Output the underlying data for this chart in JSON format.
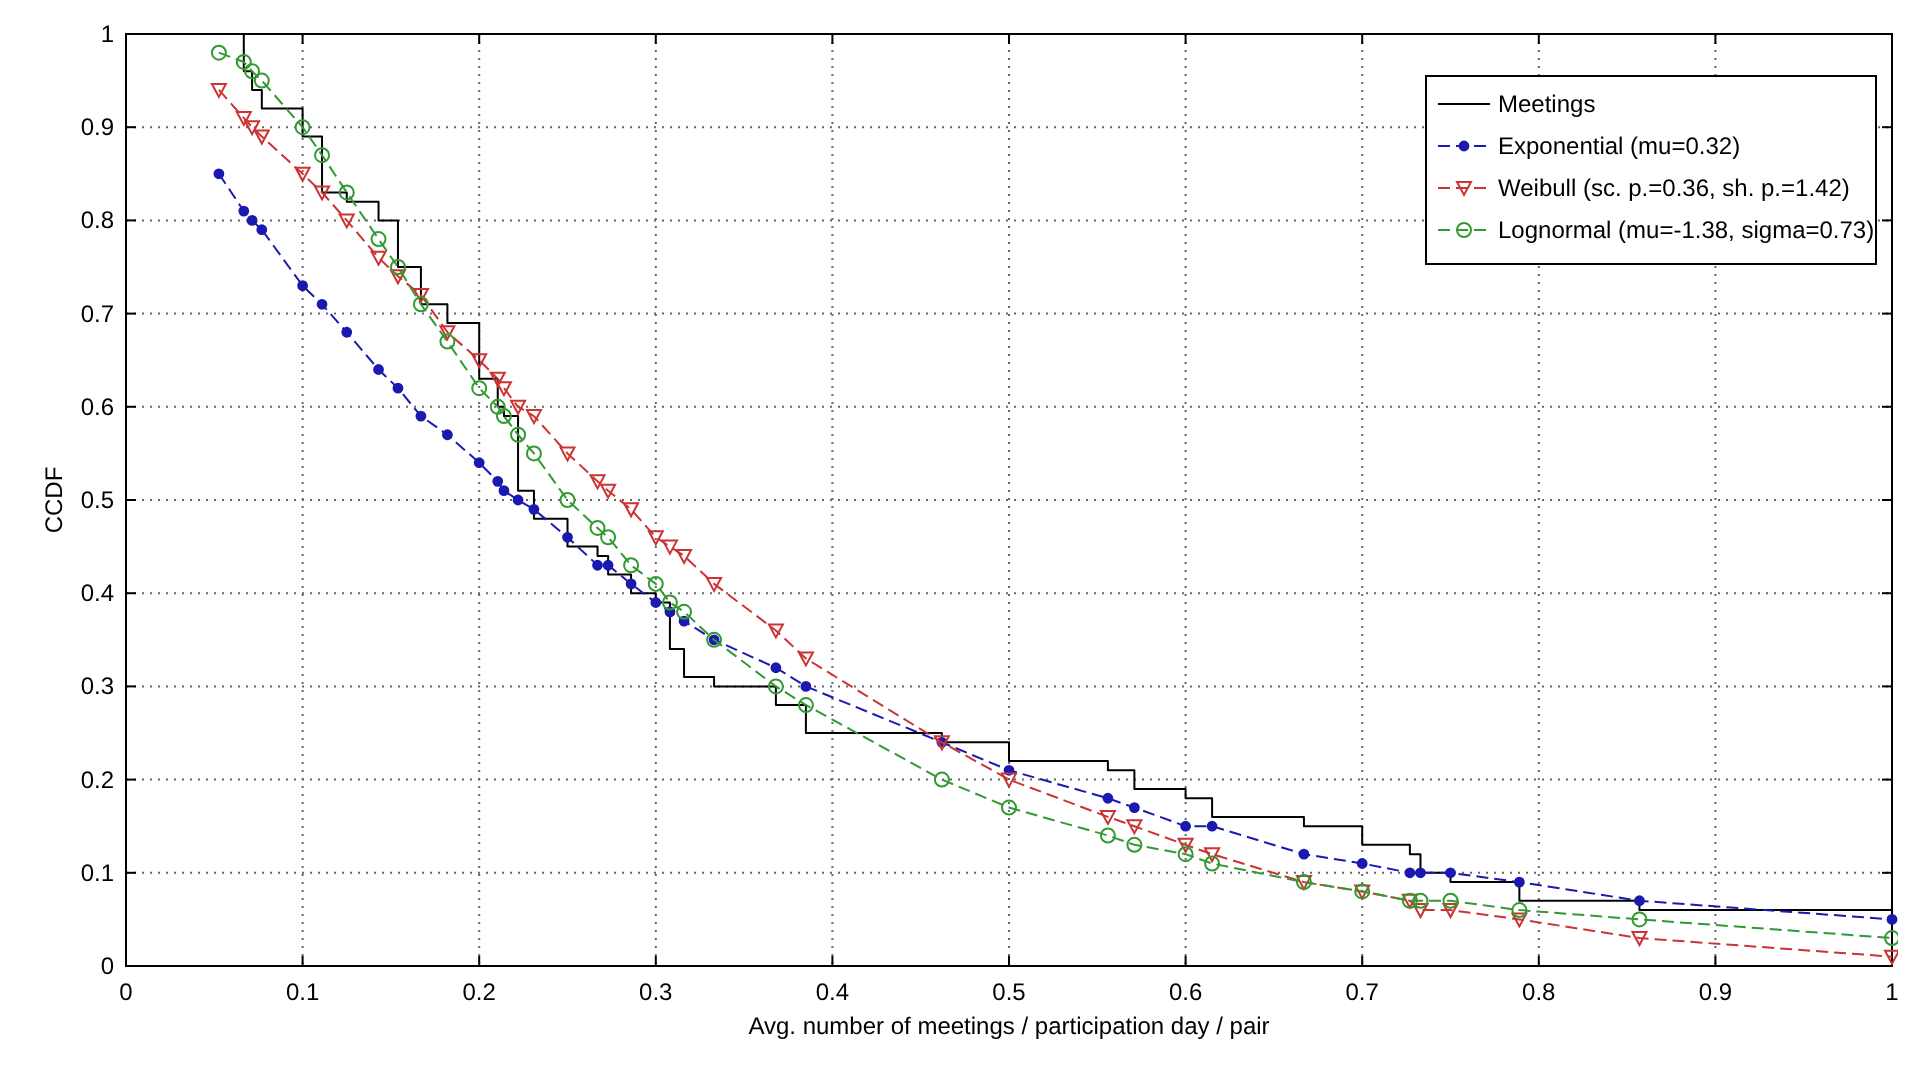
{
  "chart_data": {
    "type": "line",
    "xlabel": "Avg. number of meetings / participation day / pair",
    "ylabel": "CCDF",
    "xlim": [
      0,
      1
    ],
    "ylim": [
      0,
      1
    ],
    "xticks": [
      0,
      0.1,
      0.2,
      0.3,
      0.4,
      0.5,
      0.6,
      0.7,
      0.8,
      0.9,
      1
    ],
    "yticks": [
      0,
      0.1,
      0.2,
      0.3,
      0.4,
      0.5,
      0.6,
      0.7,
      0.8,
      0.9,
      1
    ],
    "grid": true,
    "legend": "top right",
    "series": [
      {
        "name": "Meetings",
        "type": "step",
        "color": "#000000",
        "line_style": "solid",
        "marker": "none",
        "x": [
          0.0526,
          0.0667,
          0.0714,
          0.0769,
          0.1,
          0.111,
          0.125,
          0.143,
          0.154,
          0.167,
          0.182,
          0.2,
          0.2105,
          0.214,
          0.222,
          0.231,
          0.25,
          0.267,
          0.273,
          0.286,
          0.3,
          0.308,
          0.316,
          0.333,
          0.368,
          0.385,
          0.462,
          0.5,
          0.556,
          0.571,
          0.6,
          0.615,
          0.667,
          0.7,
          0.727,
          0.733,
          0.75,
          0.789,
          0.857,
          1.0
        ],
        "values": [
          1.0,
          0.96,
          0.94,
          0.92,
          0.89,
          0.83,
          0.82,
          0.8,
          0.75,
          0.71,
          0.69,
          0.63,
          0.6,
          0.59,
          0.51,
          0.48,
          0.45,
          0.44,
          0.42,
          0.4,
          0.39,
          0.34,
          0.31,
          0.3,
          0.28,
          0.25,
          0.24,
          0.22,
          0.21,
          0.19,
          0.18,
          0.16,
          0.15,
          0.13,
          0.12,
          0.1,
          0.09,
          0.07,
          0.06,
          0.06
        ]
      },
      {
        "name": "Exponential (mu=0.32)",
        "color": "#1a1ab0",
        "line_style": "dashed",
        "marker": "circle",
        "x": [
          0.0526,
          0.0667,
          0.0714,
          0.0769,
          0.1,
          0.111,
          0.125,
          0.143,
          0.154,
          0.167,
          0.182,
          0.2,
          0.2105,
          0.214,
          0.222,
          0.231,
          0.25,
          0.267,
          0.273,
          0.286,
          0.3,
          0.308,
          0.316,
          0.333,
          0.368,
          0.385,
          0.462,
          0.5,
          0.556,
          0.571,
          0.6,
          0.615,
          0.667,
          0.7,
          0.727,
          0.733,
          0.75,
          0.789,
          0.857,
          1.0
        ],
        "values": [
          0.85,
          0.81,
          0.8,
          0.79,
          0.73,
          0.71,
          0.68,
          0.64,
          0.62,
          0.59,
          0.57,
          0.54,
          0.52,
          0.51,
          0.5,
          0.49,
          0.46,
          0.43,
          0.43,
          0.41,
          0.39,
          0.38,
          0.37,
          0.35,
          0.32,
          0.3,
          0.24,
          0.21,
          0.18,
          0.17,
          0.15,
          0.15,
          0.12,
          0.11,
          0.1,
          0.1,
          0.1,
          0.09,
          0.07,
          0.05
        ]
      },
      {
        "name": "Weibull (sc. p.=0.36, sh. p.=1.42)",
        "color": "#cc3333",
        "line_style": "dashed",
        "marker": "triangle",
        "x": [
          0.0526,
          0.0667,
          0.0714,
          0.0769,
          0.1,
          0.111,
          0.125,
          0.143,
          0.154,
          0.167,
          0.182,
          0.2,
          0.2105,
          0.214,
          0.222,
          0.231,
          0.25,
          0.267,
          0.273,
          0.286,
          0.3,
          0.308,
          0.316,
          0.333,
          0.368,
          0.385,
          0.462,
          0.5,
          0.556,
          0.571,
          0.6,
          0.615,
          0.667,
          0.7,
          0.727,
          0.733,
          0.75,
          0.789,
          0.857,
          1.0
        ],
        "values": [
          0.94,
          0.91,
          0.9,
          0.89,
          0.85,
          0.83,
          0.8,
          0.76,
          0.74,
          0.72,
          0.68,
          0.65,
          0.63,
          0.62,
          0.6,
          0.59,
          0.55,
          0.52,
          0.51,
          0.49,
          0.46,
          0.45,
          0.44,
          0.41,
          0.36,
          0.33,
          0.24,
          0.2,
          0.16,
          0.15,
          0.13,
          0.12,
          0.09,
          0.08,
          0.07,
          0.06,
          0.06,
          0.05,
          0.03,
          0.01
        ]
      },
      {
        "name": "Lognormal (mu=-1.38, sigma=0.73)",
        "color": "#339933",
        "line_style": "dashed",
        "marker": "circle-open",
        "x": [
          0.0526,
          0.0667,
          0.0714,
          0.0769,
          0.1,
          0.111,
          0.125,
          0.143,
          0.154,
          0.167,
          0.182,
          0.2,
          0.2105,
          0.214,
          0.222,
          0.231,
          0.25,
          0.267,
          0.273,
          0.286,
          0.3,
          0.308,
          0.316,
          0.333,
          0.368,
          0.385,
          0.462,
          0.5,
          0.556,
          0.571,
          0.6,
          0.615,
          0.667,
          0.7,
          0.727,
          0.733,
          0.75,
          0.789,
          0.857,
          1.0
        ],
        "values": [
          0.98,
          0.97,
          0.96,
          0.95,
          0.9,
          0.87,
          0.83,
          0.78,
          0.75,
          0.71,
          0.67,
          0.62,
          0.6,
          0.59,
          0.57,
          0.55,
          0.5,
          0.47,
          0.46,
          0.43,
          0.41,
          0.39,
          0.38,
          0.35,
          0.3,
          0.28,
          0.2,
          0.17,
          0.14,
          0.13,
          0.12,
          0.11,
          0.09,
          0.08,
          0.07,
          0.07,
          0.07,
          0.06,
          0.05,
          0.03
        ]
      }
    ]
  }
}
